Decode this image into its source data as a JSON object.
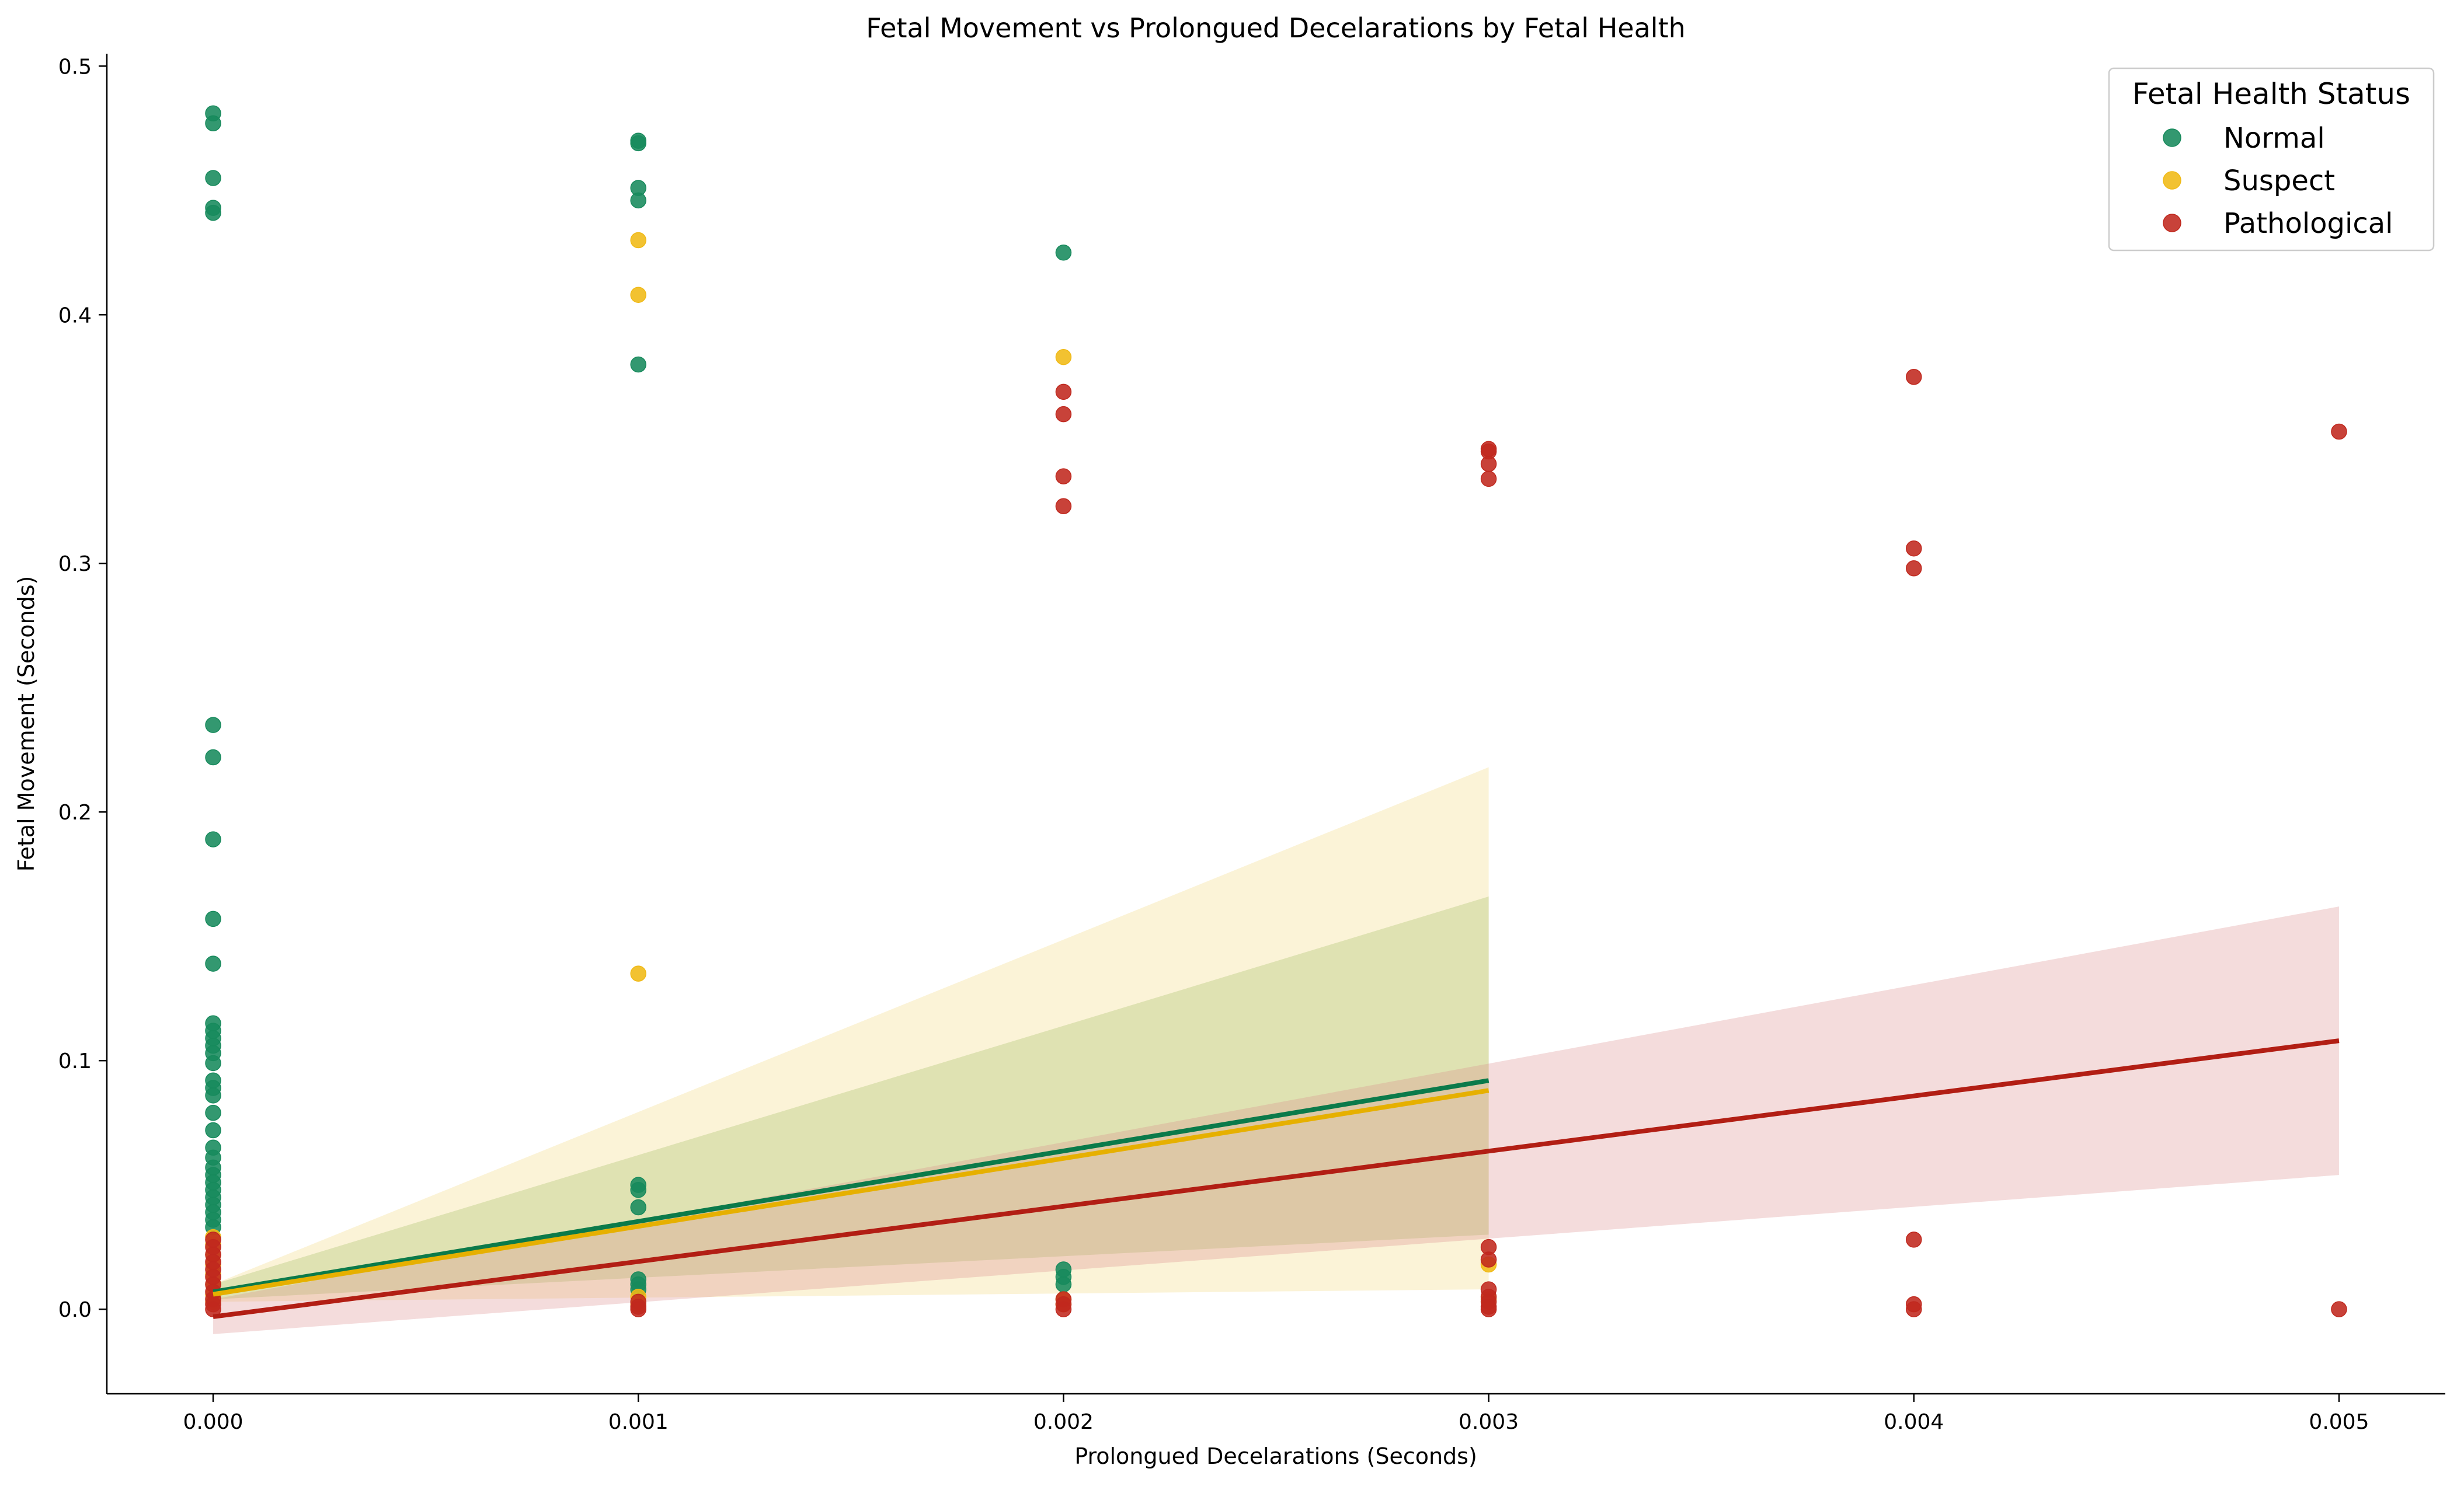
{
  "chart_data": {
    "type": "scatter",
    "title": "Fetal Movement vs Prolongued Decelarations by Fetal Health",
    "xlabel": "Prolongued Decelarations (Seconds)",
    "ylabel": "Fetal Movement (Seconds)",
    "xlim": [
      -0.00025,
      0.00525
    ],
    "ylim": [
      -0.034,
      0.505
    ],
    "x_ticks": [
      0.0,
      0.001,
      0.002,
      0.003,
      0.004,
      0.005
    ],
    "x_tick_labels": [
      "0.000",
      "0.001",
      "0.002",
      "0.003",
      "0.004",
      "0.005"
    ],
    "y_ticks": [
      0.0,
      0.1,
      0.2,
      0.3,
      0.4,
      0.5
    ],
    "y_tick_labels": [
      "0.0",
      "0.1",
      "0.2",
      "0.3",
      "0.4",
      "0.5"
    ],
    "grid": false,
    "legend": {
      "title": "Fetal Health Status",
      "position": "top-right"
    },
    "series": [
      {
        "name": "Normal",
        "color": "#178a5c",
        "line_color": "#0b7a4a",
        "band_color": "#7cae50",
        "points": [
          [
            0,
            0.481
          ],
          [
            0,
            0.477
          ],
          [
            0,
            0.455
          ],
          [
            0,
            0.443
          ],
          [
            0,
            0.441
          ],
          [
            0,
            0.235
          ],
          [
            0,
            0.222
          ],
          [
            0,
            0.189
          ],
          [
            0,
            0.157
          ],
          [
            0,
            0.139
          ],
          [
            0,
            0.115
          ],
          [
            0,
            0.112
          ],
          [
            0,
            0.109
          ],
          [
            0,
            0.106
          ],
          [
            0,
            0.103
          ],
          [
            0,
            0.099
          ],
          [
            0,
            0.092
          ],
          [
            0,
            0.089
          ],
          [
            0,
            0.086
          ],
          [
            0,
            0.079
          ],
          [
            0,
            0.072
          ],
          [
            0,
            0.065
          ],
          [
            0,
            0.061
          ],
          [
            0,
            0.057
          ],
          [
            0,
            0.054
          ],
          [
            0,
            0.051
          ],
          [
            0,
            0.048
          ],
          [
            0,
            0.045
          ],
          [
            0,
            0.042
          ],
          [
            0,
            0.039
          ],
          [
            0,
            0.036
          ],
          [
            0,
            0.033
          ],
          [
            0.001,
            0.47
          ],
          [
            0.001,
            0.469
          ],
          [
            0.001,
            0.451
          ],
          [
            0.001,
            0.446
          ],
          [
            0.001,
            0.38
          ],
          [
            0.001,
            0.05
          ],
          [
            0.001,
            0.048
          ],
          [
            0.001,
            0.041
          ],
          [
            0.001,
            0.012
          ],
          [
            0.001,
            0.01
          ],
          [
            0.001,
            0.008
          ],
          [
            0.002,
            0.425
          ],
          [
            0.002,
            0.016
          ],
          [
            0.002,
            0.013
          ],
          [
            0.002,
            0.01
          ]
        ],
        "regression": {
          "x_range": [
            0,
            0.003
          ],
          "line": [
            0.007,
            0.092
          ],
          "ci_lower": [
            0.004,
            0.03
          ],
          "ci_upper": [
            0.01,
            0.166
          ]
        }
      },
      {
        "name": "Suspect",
        "color": "#f0b915",
        "line_color": "#e6b000",
        "band_color": "#f3d77a",
        "points": [
          [
            0,
            0.029
          ],
          [
            0,
            0.026
          ],
          [
            0,
            0.022
          ],
          [
            0,
            0.018
          ],
          [
            0,
            0.014
          ],
          [
            0,
            0.01
          ],
          [
            0,
            0.006
          ],
          [
            0,
            0.003
          ],
          [
            0.001,
            0.43
          ],
          [
            0.001,
            0.408
          ],
          [
            0.001,
            0.135
          ],
          [
            0.001,
            0.005
          ],
          [
            0.001,
            0.002
          ],
          [
            0.002,
            0.383
          ],
          [
            0.002,
            0.004
          ],
          [
            0.002,
            0.002
          ],
          [
            0.003,
            0.018
          ],
          [
            0.003,
            0.004
          ]
        ],
        "regression": {
          "x_range": [
            0,
            0.003
          ],
          "line": [
            0.006,
            0.088
          ],
          "ci_lower": [
            0.003,
            0.008
          ],
          "ci_upper": [
            0.01,
            0.218
          ]
        }
      },
      {
        "name": "Pathological",
        "color": "#c0281e",
        "line_color": "#b21e14",
        "band_color": "#dc8c8c",
        "points": [
          [
            0,
            0.028
          ],
          [
            0,
            0.025
          ],
          [
            0,
            0.022
          ],
          [
            0,
            0.019
          ],
          [
            0,
            0.016
          ],
          [
            0,
            0.013
          ],
          [
            0,
            0.01
          ],
          [
            0,
            0.007
          ],
          [
            0,
            0.004
          ],
          [
            0,
            0.002
          ],
          [
            0,
            0.0
          ],
          [
            0.001,
            0.003
          ],
          [
            0.001,
            0.001
          ],
          [
            0.001,
            0.0
          ],
          [
            0.002,
            0.369
          ],
          [
            0.002,
            0.36
          ],
          [
            0.002,
            0.335
          ],
          [
            0.002,
            0.323
          ],
          [
            0.002,
            0.004
          ],
          [
            0.002,
            0.002
          ],
          [
            0.002,
            0.0
          ],
          [
            0.003,
            0.346
          ],
          [
            0.003,
            0.345
          ],
          [
            0.003,
            0.34
          ],
          [
            0.003,
            0.334
          ],
          [
            0.003,
            0.025
          ],
          [
            0.003,
            0.02
          ],
          [
            0.003,
            0.008
          ],
          [
            0.003,
            0.005
          ],
          [
            0.003,
            0.003
          ],
          [
            0.003,
            0.001
          ],
          [
            0.003,
            0.0
          ],
          [
            0.004,
            0.375
          ],
          [
            0.004,
            0.306
          ],
          [
            0.004,
            0.298
          ],
          [
            0.004,
            0.028
          ],
          [
            0.004,
            0.002
          ],
          [
            0.004,
            0.0
          ],
          [
            0.005,
            0.353
          ],
          [
            0.005,
            0.0
          ]
        ],
        "regression": {
          "x_range": [
            0,
            0.005
          ],
          "line": [
            -0.003,
            0.108
          ],
          "ci_lower": [
            -0.01,
            0.054
          ],
          "ci_upper": [
            0.004,
            0.162
          ]
        }
      }
    ]
  }
}
